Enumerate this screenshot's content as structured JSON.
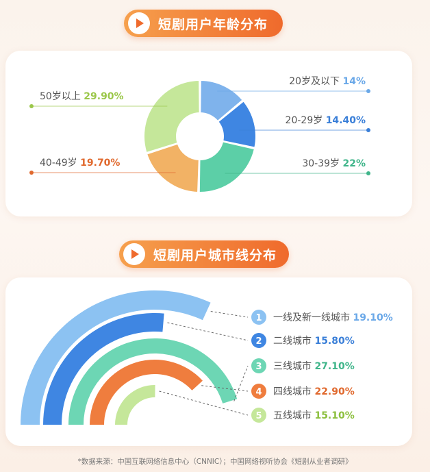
{
  "sections": [
    {
      "title": "短剧用户年龄分布"
    },
    {
      "title": "短剧用户城市线分布"
    }
  ],
  "footnote": "*数据来源：中国互联网络信息中心（CNNIC）；中国网络视听协会《短剧从业者调研》",
  "icons": [
    "play-icon",
    "play-icon"
  ],
  "chart_data": [
    {
      "type": "pie",
      "donut": true,
      "title": "短剧用户年龄分布",
      "categories": [
        "20岁及以下",
        "20-29岁",
        "30-39岁",
        "40-49岁",
        "50岁以上"
      ],
      "values": [
        14,
        14.4,
        22,
        19.7,
        29.9
      ],
      "value_labels": [
        "14%",
        "14.40%",
        "22%",
        "19.70%",
        "29.90%"
      ],
      "colors": [
        "#7fb3ec",
        "#3f86e2",
        "#5ccfa7",
        "#f2b265",
        "#c5e79a"
      ],
      "label_colors": [
        "#6aa8e8",
        "#3a7fd8",
        "#3fb58a",
        "#e0692e",
        "#9bc74a"
      ]
    },
    {
      "type": "pie",
      "radial": true,
      "title": "短剧用户城市线分布",
      "categories": [
        "一线及新一线城市",
        "二线城市",
        "三线城市",
        "四线城市",
        "五线城市"
      ],
      "indices": [
        "1",
        "2",
        "3",
        "4",
        "5"
      ],
      "values": [
        19.1,
        15.8,
        27.1,
        22.9,
        15.1
      ],
      "value_labels": [
        "19.10%",
        "15.80%",
        "27.10%",
        "22.90%",
        "15.10%"
      ],
      "colors": [
        "#8cc2f2",
        "#3f86e2",
        "#6dd6b4",
        "#ef7d3e",
        "#c5e79a"
      ],
      "label_colors": [
        "#6aa8e8",
        "#3a7fd8",
        "#3fb58a",
        "#e0692e",
        "#8cbf3e"
      ]
    }
  ]
}
